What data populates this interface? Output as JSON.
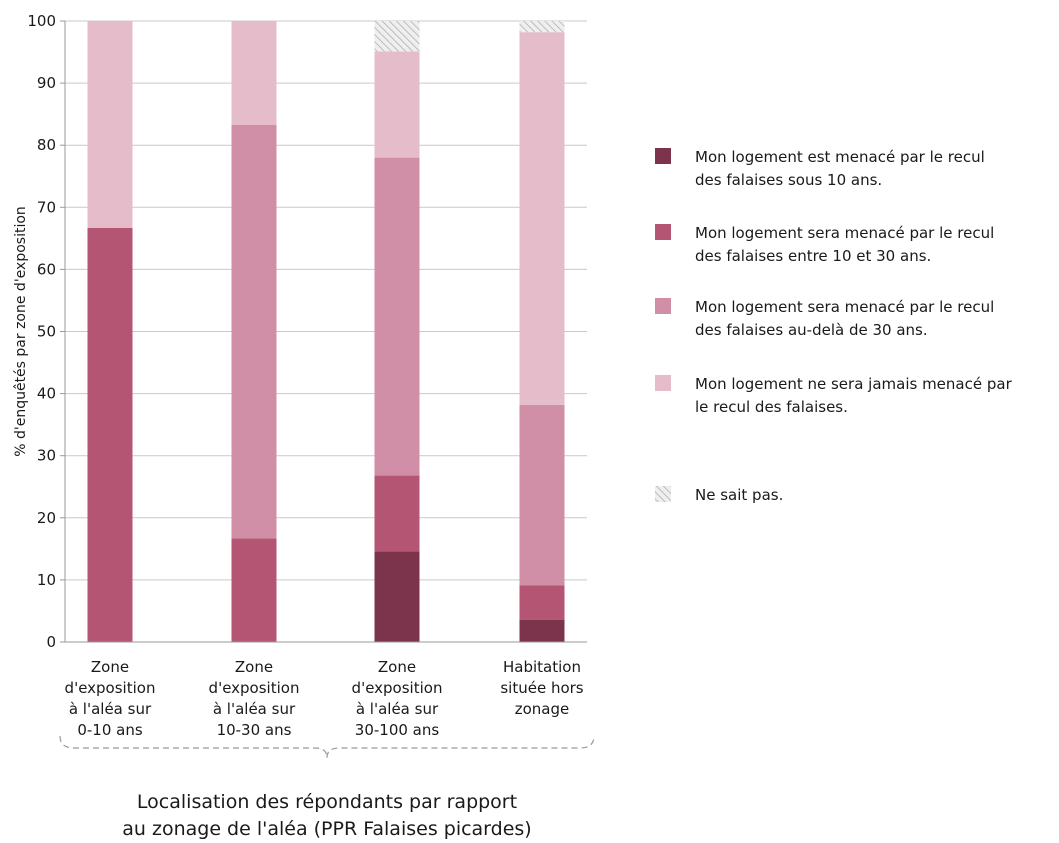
{
  "chart_data": {
    "type": "bar",
    "stacked": true,
    "categories": [
      [
        "Zone",
        "d'exposition",
        "à l'aléa sur",
        "0-10 ans"
      ],
      [
        "Zone",
        "d'exposition",
        "à l'aléa sur",
        "10-30 ans"
      ],
      [
        "Zone",
        "d'exposition",
        "à l'aléa sur",
        "30-100 ans"
      ],
      [
        "Habitation",
        "située hors",
        "zonage"
      ]
    ],
    "series": [
      {
        "name": "Mon logement est menacé par le recul des falaises sous 10 ans.",
        "legend_lines": [
          "Mon logement est menacé par le recul",
          "des falaises sous 10 ans."
        ],
        "color": "#7b344c",
        "pattern": "solid",
        "values": [
          0,
          0,
          14.6,
          3.6
        ]
      },
      {
        "name": "Mon logement sera menacé par le recul des falaises entre 10 et 30 ans.",
        "legend_lines": [
          "Mon logement sera menacé par le recul",
          "des falaises entre 10 et 30 ans."
        ],
        "color": "#b45574",
        "pattern": "solid",
        "values": [
          66.7,
          16.7,
          12.2,
          5.5
        ]
      },
      {
        "name": "Mon logement sera menacé par le recul des falaises au-delà de 30 ans.",
        "legend_lines": [
          "Mon logement sera menacé par le recul",
          "des falaises au-delà de 30 ans."
        ],
        "color": "#d08fa6",
        "pattern": "solid",
        "values": [
          0,
          66.6,
          51.2,
          29.1
        ]
      },
      {
        "name": "Mon logement ne sera jamais menacé par le recul des falaises.",
        "legend_lines": [
          "Mon logement ne sera jamais menacé par",
          "le recul des falaises."
        ],
        "color": "#e5bcca",
        "pattern": "solid",
        "values": [
          33.3,
          16.7,
          17.1,
          60.0
        ]
      },
      {
        "name": "Ne sait pas.",
        "legend_lines": [
          "Ne sait pas."
        ],
        "color": "#c8c8c8",
        "pattern": "hatch",
        "values": [
          0,
          0,
          4.9,
          1.8
        ]
      }
    ],
    "ylabel": "% d'enquêtés  par zone d'exposition",
    "xlabel_lines": [
      "Localisation des répondants par rapport",
      "au zonage de l'aléa (PPR Falaises picardes)"
    ],
    "ylim": [
      0,
      100
    ],
    "yticks": [
      0,
      10,
      20,
      30,
      40,
      50,
      60,
      70,
      80,
      90,
      100
    ],
    "grid": "horizontal",
    "legend_position": "right"
  }
}
